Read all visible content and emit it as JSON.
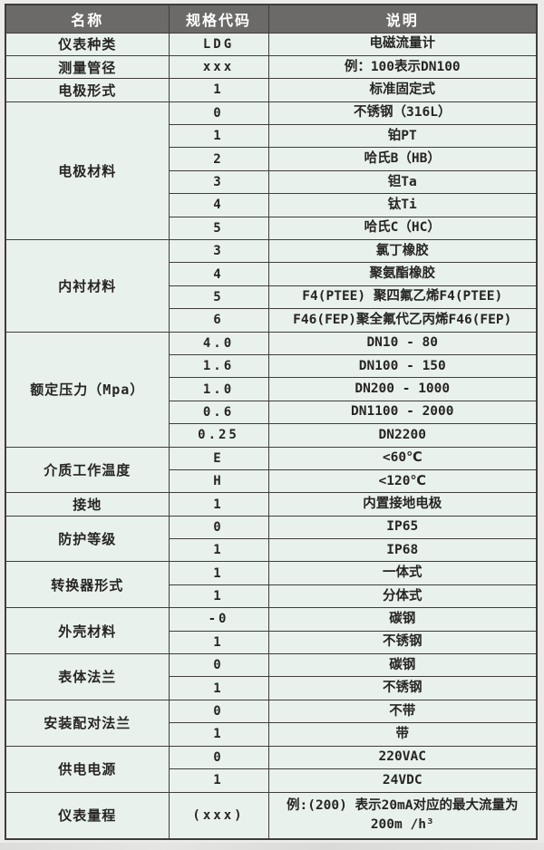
{
  "colors": {
    "header_bg": "#6c6a68",
    "header_text": "#ffffff",
    "cell_bg": "#e9f1ec",
    "border": "#3f3d3a",
    "text": "#262523",
    "page_bg": "#ebebe9"
  },
  "table": {
    "columns": [
      "名称",
      "规格代码",
      "说明"
    ],
    "sections": [
      {
        "name": "仪表种类",
        "rows": [
          {
            "code": "LDG",
            "desc": "电磁流量计"
          }
        ]
      },
      {
        "name": "测量管径",
        "rows": [
          {
            "code": "xxx",
            "desc": "例：100表示DN100"
          }
        ]
      },
      {
        "name": "电极形式",
        "rows": [
          {
            "code": "1",
            "desc": "标准固定式"
          }
        ]
      },
      {
        "name": "电极材料",
        "rows": [
          {
            "code": "0",
            "desc": "不锈钢（316L）"
          },
          {
            "code": "1",
            "desc": "铂PT"
          },
          {
            "code": "2",
            "desc": "哈氏B（HB）"
          },
          {
            "code": "3",
            "desc": "钽Ta"
          },
          {
            "code": "4",
            "desc": "钛Ti"
          },
          {
            "code": "5",
            "desc": "哈氏C（HC）"
          }
        ]
      },
      {
        "name": "内衬材料",
        "rows": [
          {
            "code": "3",
            "desc": "氯丁橡胶"
          },
          {
            "code": "4",
            "desc": "聚氨酯橡胶"
          },
          {
            "code": "5",
            "desc": "F4(PTEE) 聚四氟乙烯F4(PTEE)"
          },
          {
            "code": "6",
            "desc": "F46(FEP)聚全氟代乙丙烯F46(FEP)"
          }
        ]
      },
      {
        "name": "额定压力（Mpa）",
        "rows": [
          {
            "code": "4.0",
            "desc": "DN10 - 80"
          },
          {
            "code": "1.6",
            "desc": "DN100 - 150"
          },
          {
            "code": "1.0",
            "desc": "DN200 - 1000"
          },
          {
            "code": "0.6",
            "desc": "DN1100 - 2000"
          },
          {
            "code": "0.25",
            "desc": "DN2200"
          }
        ]
      },
      {
        "name": "介质工作温度",
        "rows": [
          {
            "code": "E",
            "desc": "<60℃"
          },
          {
            "code": "H",
            "desc": "<120℃"
          }
        ]
      },
      {
        "name": "接地",
        "rows": [
          {
            "code": "1",
            "desc": "内置接地电极"
          }
        ]
      },
      {
        "name": "防护等级",
        "rows": [
          {
            "code": "0",
            "desc": "IP65"
          },
          {
            "code": "1",
            "desc": "IP68"
          }
        ]
      },
      {
        "name": "转换器形式",
        "rows": [
          {
            "code": "1",
            "desc": "一体式"
          },
          {
            "code": "1",
            "desc": "分体式"
          }
        ]
      },
      {
        "name": "外壳材料",
        "rows": [
          {
            "code": "-0",
            "desc": "碳钢"
          },
          {
            "code": "1",
            "desc": "不锈钢"
          }
        ]
      },
      {
        "name": "表体法兰",
        "rows": [
          {
            "code": "0",
            "desc": "碳钢"
          },
          {
            "code": "1",
            "desc": "不锈钢"
          }
        ]
      },
      {
        "name": "安装配对法兰",
        "rows": [
          {
            "code": "0",
            "desc": "不带"
          },
          {
            "code": "1",
            "desc": "带"
          }
        ]
      },
      {
        "name": "供电电源",
        "rows": [
          {
            "code": "0",
            "desc": "220VAC"
          },
          {
            "code": "1",
            "desc": "24VDC"
          }
        ]
      },
      {
        "name": "仪表量程",
        "rows": [
          {
            "code": "(xxx)",
            "desc": "例:(200) 表示20mA对应的最大流量为200m /h³"
          }
        ]
      }
    ]
  }
}
